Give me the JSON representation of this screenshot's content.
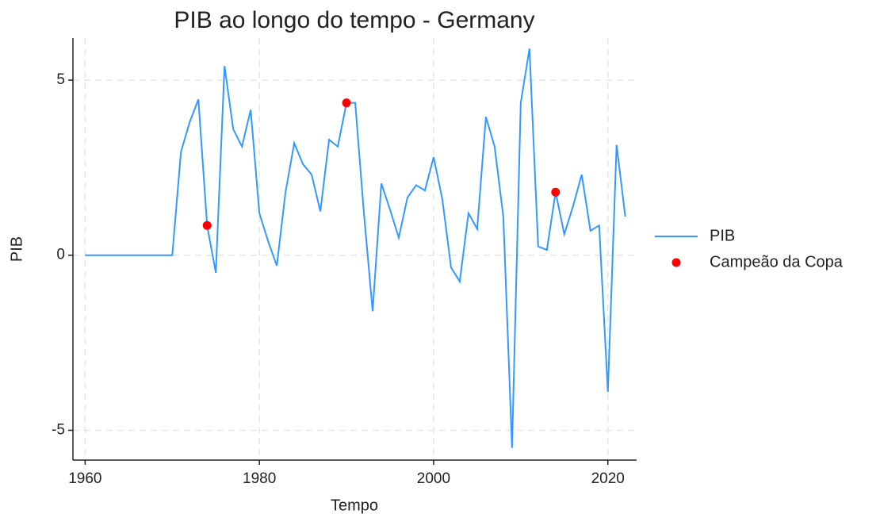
{
  "chart_data": {
    "type": "line",
    "title": "PIB ao longo do tempo - Germany",
    "x_label": "Tempo",
    "y_label": "PIB",
    "x": [
      1960,
      1961,
      1962,
      1963,
      1964,
      1965,
      1966,
      1967,
      1968,
      1969,
      1970,
      1971,
      1972,
      1973,
      1974,
      1975,
      1976,
      1977,
      1978,
      1979,
      1980,
      1981,
      1982,
      1983,
      1984,
      1985,
      1986,
      1987,
      1988,
      1989,
      1990,
      1991,
      1992,
      1993,
      1994,
      1995,
      1996,
      1997,
      1998,
      1999,
      2000,
      2001,
      2002,
      2003,
      2004,
      2005,
      2006,
      2007,
      2008,
      2009,
      2010,
      2011,
      2012,
      2013,
      2014,
      2015,
      2016,
      2017,
      2018,
      2019,
      2020,
      2021,
      2022
    ],
    "series": [
      {
        "name": "PIB",
        "color": "#3399ff",
        "values": [
          0,
          0,
          0,
          0,
          0,
          0,
          0,
          0,
          0,
          0,
          0,
          2.95,
          3.8,
          4.45,
          0.85,
          -0.5,
          5.4,
          3.6,
          3.1,
          4.15,
          1.2,
          0.4,
          -0.3,
          1.8,
          3.2,
          2.6,
          2.3,
          1.25,
          3.3,
          3.1,
          4.35,
          4.35,
          1.2,
          -1.6,
          2.05,
          1.3,
          0.5,
          1.65,
          2.0,
          1.85,
          2.8,
          1.6,
          -0.35,
          -0.75,
          1.2,
          0.75,
          3.95,
          3.1,
          1.1,
          -5.5,
          4.35,
          5.9,
          0.25,
          0.15,
          1.8,
          0.6,
          1.4,
          2.3,
          0.7,
          0.85,
          -3.9,
          3.15,
          1.1
        ]
      },
      {
        "name": "Campeão da Copa",
        "color": "#ff0000",
        "type": "scatter",
        "x": [
          1974,
          1990,
          2014
        ],
        "values": [
          0.85,
          4.35,
          1.8
        ]
      }
    ],
    "xlim": [
      1958.6,
      2023.3
    ],
    "ylim": [
      -5.85,
      6.2
    ],
    "xticks": [
      1960,
      1980,
      2000,
      2020
    ],
    "yticks": [
      -5,
      0,
      5
    ],
    "grid": true,
    "legend": "right"
  }
}
